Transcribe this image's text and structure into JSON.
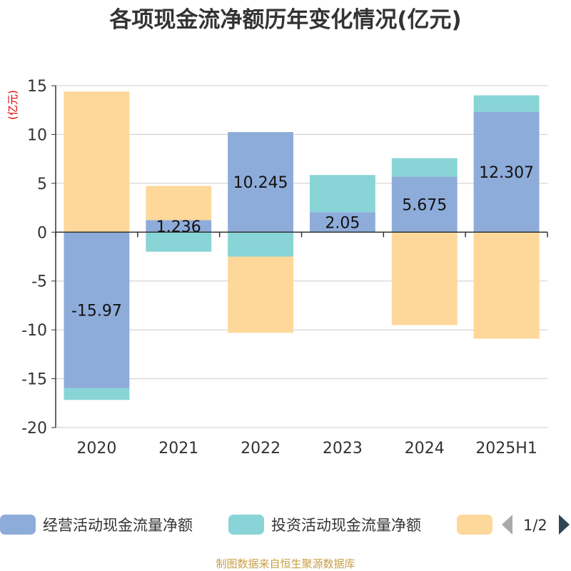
{
  "chart_data": {
    "type": "bar",
    "stacked": true,
    "title": "各项现金流净额历年变化情况(亿元)",
    "ylabel": "(亿元)",
    "categories": [
      "2020",
      "2021",
      "2022",
      "2023",
      "2024",
      "2025H1"
    ],
    "ylim": [
      -20,
      15
    ],
    "yticks": [
      15,
      10,
      5,
      0,
      -5,
      -10,
      -15,
      -20
    ],
    "grid": true,
    "legend_position": "bottom",
    "series": [
      {
        "name": "经营活动现金流量净额",
        "color": "#8eacd9",
        "values": [
          -15.97,
          1.236,
          10.245,
          2.05,
          5.675,
          12.307
        ],
        "labels": [
          "-15.97",
          "1.236",
          "10.245",
          "2.05",
          "5.675",
          "12.307"
        ]
      },
      {
        "name": "投资活动现金流量净额",
        "color": "#88d4d6",
        "values": [
          -1.2,
          -2.0,
          -2.5,
          3.8,
          1.9,
          1.7
        ]
      },
      {
        "name": "",
        "color": "#fdd89a",
        "values": [
          14.4,
          3.5,
          -7.8,
          0,
          -9.5,
          -10.9
        ]
      }
    ]
  },
  "legend": {
    "page": "1/2"
  },
  "source": "制图数据来自恒生聚源数据库",
  "colors": {
    "axis": "#333333",
    "grid": "#cccccc",
    "ylabel": "#e00000",
    "tick": "#333333"
  }
}
